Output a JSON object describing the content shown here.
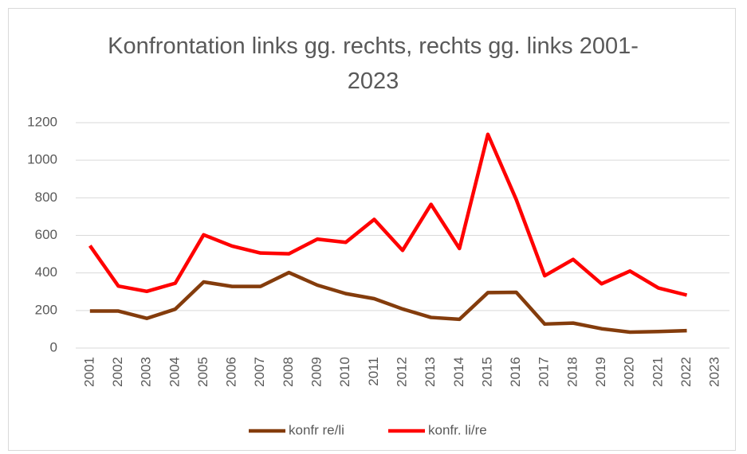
{
  "chart_data": {
    "type": "line",
    "title": "Konfrontation links gg. rechts, rechts gg. links 2001-2023",
    "categories": [
      "2001",
      "2002",
      "2003",
      "2004",
      "2005",
      "2006",
      "2007",
      "2008",
      "2009",
      "2010",
      "2011",
      "2012",
      "2013",
      "2014",
      "2015",
      "2016",
      "2017",
      "2018",
      "2019",
      "2020",
      "2021",
      "2022",
      "2023"
    ],
    "series": [
      {
        "name": "konfr re/li",
        "color": "#843c0c",
        "values": [
          197,
          197,
          158,
          207,
          352,
          328,
          328,
          402,
          335,
          290,
          263,
          208,
          163,
          153,
          295,
          297,
          128,
          133,
          103,
          85,
          88,
          93,
          null
        ]
      },
      {
        "name": "konfr. li/re",
        "color": "#ff0000",
        "values": [
          545,
          330,
          302,
          345,
          603,
          543,
          506,
          502,
          580,
          563,
          685,
          520,
          765,
          530,
          1138,
          790,
          385,
          472,
          342,
          410,
          320,
          282,
          null
        ]
      }
    ],
    "ylim": [
      0,
      1200
    ],
    "yticks": [
      0,
      200,
      400,
      600,
      800,
      1000,
      1200
    ],
    "grid": true,
    "legend": "bottom"
  }
}
